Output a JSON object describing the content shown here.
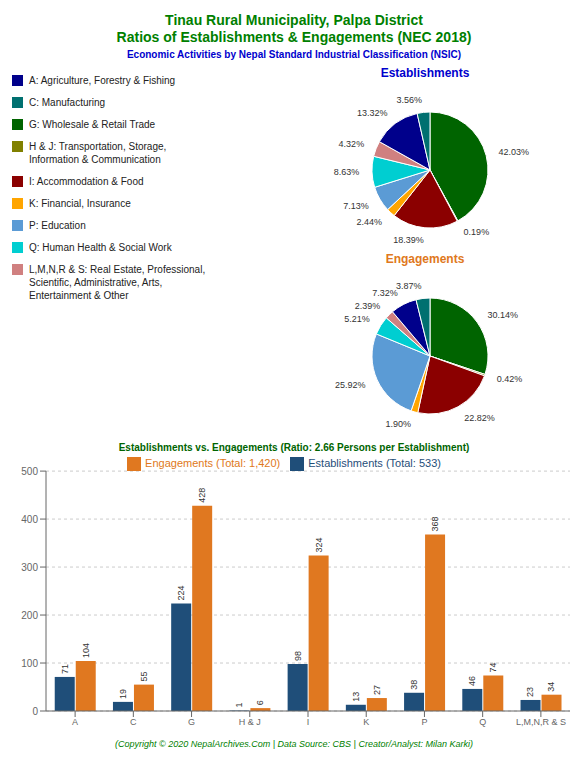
{
  "title": "Tinau Rural Municipality, Palpa District\nRatios of Establishments & Engagements (NEC 2018)",
  "title_color": "#008000",
  "subtitle": "Economic Activities by Nepal Standard Industrial Classification (NSIC)",
  "subtitle_color": "#0000CD",
  "annotations": [
    {
      "text": "(Copyright © 2020 NepalArchives.Com | Data Source: CBS | Creator/Analyst: Milan Karki)",
      "color": "#008000"
    }
  ],
  "legend_entries": [
    {
      "name": "A: Agriculture, Forestry & Fishing",
      "color": "#00008B"
    },
    {
      "name": "C: Manufacturing",
      "color": "#007070"
    },
    {
      "name": "G: Wholesale & Retail Trade",
      "color": "#006400"
    },
    {
      "name": "H & J: Transportation, Storage,\nInformation & Communication",
      "color": "#808000"
    },
    {
      "name": "I: Accommodation & Food",
      "color": "#8B0000"
    },
    {
      "name": "K: Financial, Insurance",
      "color": "#FFA500"
    },
    {
      "name": "P: Education",
      "color": "#5B9BD5"
    },
    {
      "name": "Q: Human Health & Social Work",
      "color": "#00CED1"
    },
    {
      "name": "L,M,N,R & S: Real Estate, Professional,\nScientific, Administrative, Arts,\nEntertainment & Other",
      "color": "#D08080"
    }
  ],
  "chart_data": [
    {
      "type": "pie",
      "title": "Establishments",
      "title_color": "#0000CD",
      "values": [
        42.03,
        0.19,
        18.39,
        2.44,
        7.13,
        8.63,
        4.32,
        13.32,
        3.56
      ],
      "value_labels": [
        "42.03%",
        "0.19%",
        "18.39%",
        "2.44%",
        "7.13%",
        "8.63%",
        "4.32%",
        "13.32%",
        "3.56%"
      ],
      "colors": [
        "#006400",
        "#808000",
        "#8B0000",
        "#FFA500",
        "#5B9BD5",
        "#00CED1",
        "#D08080",
        "#00008B",
        "#007070"
      ]
    },
    {
      "type": "pie",
      "title": "Engagements",
      "title_color": "#E07820",
      "values": [
        30.14,
        0.42,
        22.82,
        1.9,
        25.92,
        5.21,
        2.39,
        7.32,
        3.87
      ],
      "value_labels": [
        "30.14%",
        "0.42%",
        "22.82%",
        "1.90%",
        "25.92%",
        "5.21%",
        "2.39%",
        "7.32%",
        "3.87%"
      ],
      "colors": [
        "#006400",
        "#808000",
        "#8B0000",
        "#FFA500",
        "#5B9BD5",
        "#00CED1",
        "#D08080",
        "#00008B",
        "#007070"
      ]
    },
    {
      "type": "bar",
      "title": "Establishments vs. Engagements (Ratio: 2.66 Persons per Establishment)",
      "title_color": "#006400",
      "categories": [
        "A",
        "C",
        "G",
        "H & J",
        "I",
        "K",
        "P",
        "Q",
        "L,M,N,R & S"
      ],
      "series": [
        {
          "name": "Establishments (Total: 533)",
          "color": "#1F4E79",
          "values": [
            71,
            19,
            224,
            1,
            98,
            13,
            38,
            46,
            23
          ]
        },
        {
          "name": "Engagements (Total: 1,420)",
          "color": "#E07820",
          "values": [
            104,
            55,
            428,
            6,
            324,
            27,
            368,
            74,
            34
          ]
        }
      ],
      "ylim": [
        0,
        500
      ],
      "yticks": [
        0,
        100,
        200,
        300,
        400,
        500
      ],
      "grid": true,
      "data_labels": true,
      "legend": "top"
    }
  ]
}
